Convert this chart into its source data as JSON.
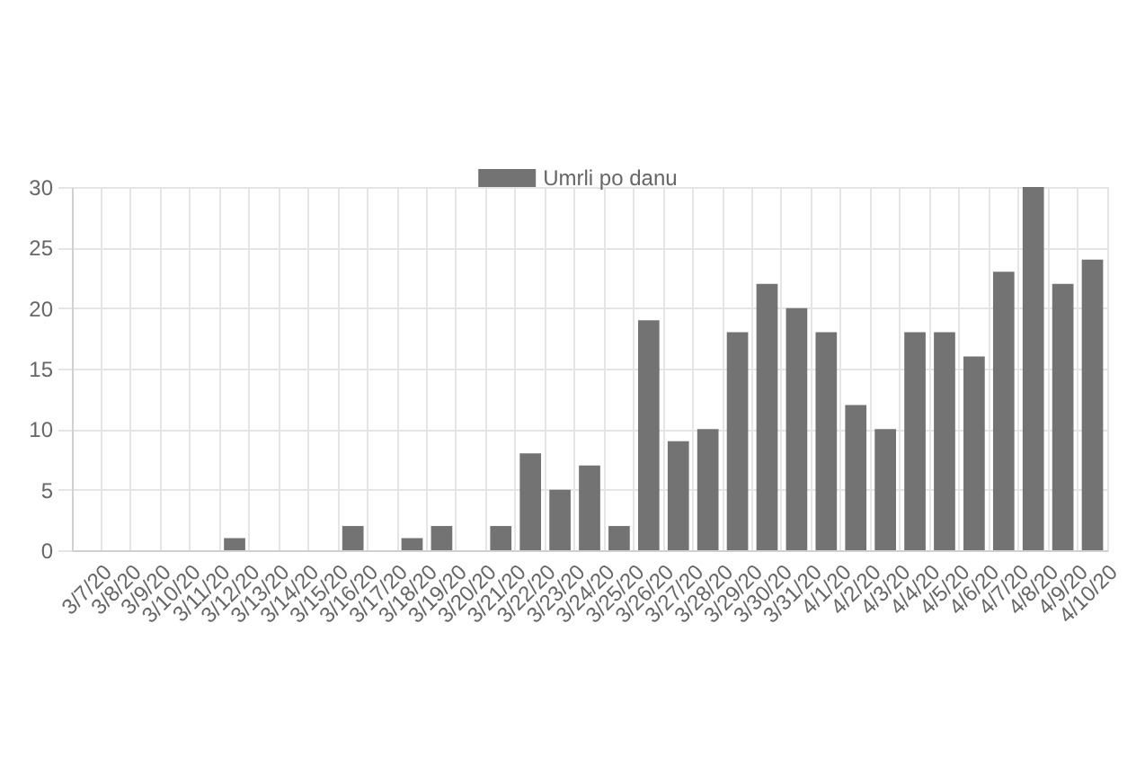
{
  "chart_data": {
    "type": "bar",
    "categories": [
      "3/7/20",
      "3/8/20",
      "3/9/20",
      "3/10/20",
      "3/11/20",
      "3/12/20",
      "3/13/20",
      "3/14/20",
      "3/15/20",
      "3/16/20",
      "3/17/20",
      "3/18/20",
      "3/19/20",
      "3/20/20",
      "3/21/20",
      "3/22/20",
      "3/23/20",
      "3/24/20",
      "3/25/20",
      "3/26/20",
      "3/27/20",
      "3/28/20",
      "3/29/20",
      "3/30/20",
      "3/31/20",
      "4/1/20",
      "4/2/20",
      "4/3/20",
      "4/4/20",
      "4/5/20",
      "4/6/20",
      "4/7/20",
      "4/8/20",
      "4/9/20",
      "4/10/20"
    ],
    "series": [
      {
        "name": "Umrli po danu",
        "color": "#737373",
        "values": [
          0,
          0,
          0,
          0,
          0,
          1,
          0,
          0,
          0,
          2,
          0,
          1,
          2,
          0,
          2,
          8,
          5,
          7,
          2,
          19,
          9,
          10,
          18,
          22,
          20,
          18,
          12,
          10,
          18,
          18,
          16,
          23,
          30,
          22,
          24
        ]
      }
    ],
    "ylim": [
      0,
      30
    ],
    "yticks": [
      0,
      5,
      10,
      15,
      20,
      25,
      30
    ],
    "grid": true,
    "legend": "top"
  }
}
